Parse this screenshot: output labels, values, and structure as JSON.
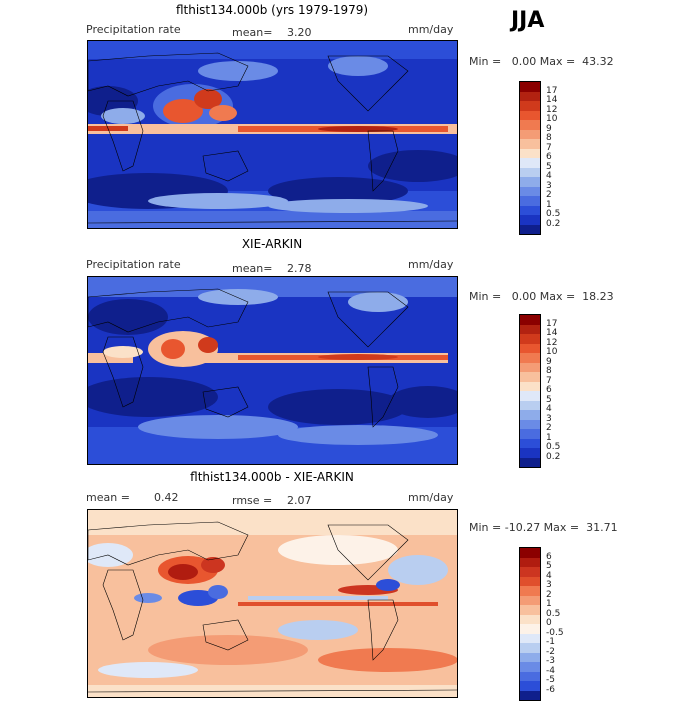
{
  "season": "JJA",
  "panels": [
    {
      "title": "flthist134.000b (yrs 1979-1979)",
      "left_label": "Precipitation rate",
      "mid_label": "mean=",
      "mid_value": "3.20",
      "extra_label": "",
      "extra_value": "",
      "units": "mm/day",
      "minmax_text": "Min =   0.00 Max =  43.32",
      "colorbar": {
        "labels": [
          "17",
          "14",
          "12",
          "10",
          "9",
          "8",
          "7",
          "6",
          "5",
          "4",
          "3",
          "2",
          "1",
          "0.5",
          "0.2"
        ],
        "colors": [
          "#8b0000",
          "#b22211",
          "#d03a1c",
          "#e8562f",
          "#f07a50",
          "#f49c75",
          "#f8c09d",
          "#fbe1c8",
          "#dfe8f8",
          "#b9cef0",
          "#8eacea",
          "#6a8be6",
          "#4a6ce0",
          "#2c4ed8",
          "#1a34c2",
          "#0f1f8c"
        ]
      }
    },
    {
      "title": "XIE-ARKIN",
      "left_label": "Precipitation rate",
      "mid_label": "mean=",
      "mid_value": "2.78",
      "extra_label": "",
      "extra_value": "",
      "units": "mm/day",
      "minmax_text": "Min =   0.00 Max =  18.23",
      "colorbar": {
        "labels": [
          "17",
          "14",
          "12",
          "10",
          "9",
          "8",
          "7",
          "6",
          "5",
          "4",
          "3",
          "2",
          "1",
          "0.5",
          "0.2"
        ],
        "colors": [
          "#8b0000",
          "#b22211",
          "#d03a1c",
          "#e8562f",
          "#f07a50",
          "#f49c75",
          "#f8c09d",
          "#fbe1c8",
          "#dfe8f8",
          "#b9cef0",
          "#8eacea",
          "#6a8be6",
          "#4a6ce0",
          "#2c4ed8",
          "#1a34c2",
          "#0f1f8c"
        ]
      }
    },
    {
      "title": "flthist134.000b - XIE-ARKIN",
      "left_label": "mean =",
      "mid_label": "",
      "mid_value": "0.42",
      "extra_label": "rmse =",
      "extra_value": "2.07",
      "units": "mm/day",
      "minmax_text": "Min = -10.27 Max =  31.71",
      "colorbar": {
        "labels": [
          "6",
          "5",
          "4",
          "3",
          "2",
          "1",
          "0.5",
          "0",
          "-0.5",
          "-1",
          "-2",
          "-3",
          "-4",
          "-5",
          "-6"
        ],
        "colors": [
          "#8b0000",
          "#b01c10",
          "#cc3520",
          "#e04f2c",
          "#f07a50",
          "#f49c75",
          "#f8c09d",
          "#fbe1c8",
          "#fdf2e8",
          "#dfe8f8",
          "#b9cef0",
          "#8eacea",
          "#6a8be6",
          "#4a6ce0",
          "#2c4ed8",
          "#0f1f8c"
        ]
      }
    }
  ]
}
